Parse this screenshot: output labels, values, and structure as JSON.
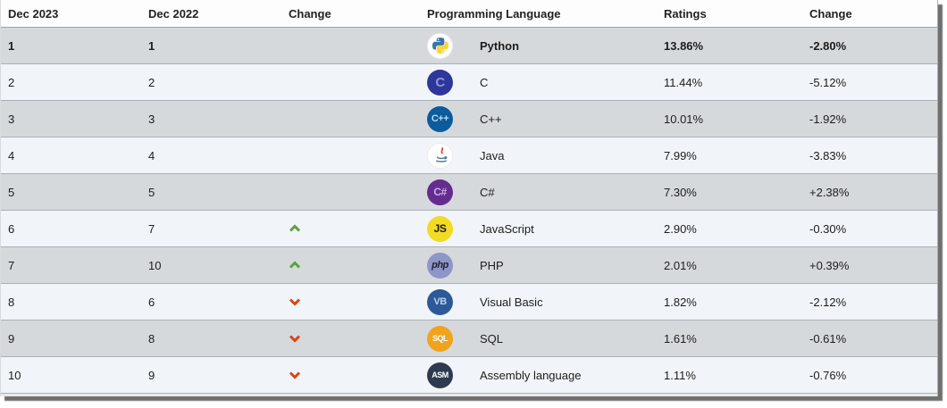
{
  "table": {
    "columns": [
      "Dec 2023",
      "Dec 2022",
      "Change",
      "Programming Language",
      "Ratings",
      "Change"
    ],
    "rows": [
      {
        "pos_now": "1",
        "pos_prev": "1",
        "trend": "none",
        "language": "Python",
        "ratings": "13.86%",
        "change": "-2.80%",
        "highlight": true,
        "icon": {
          "kind": "python",
          "bg": "#ffffff"
        }
      },
      {
        "pos_now": "2",
        "pos_prev": "2",
        "trend": "none",
        "language": "C",
        "ratings": "11.44%",
        "change": "-5.12%",
        "icon": {
          "kind": "text",
          "text": "C",
          "bg": "#2f3699",
          "fg": "#8f96d9",
          "size": 15
        }
      },
      {
        "pos_now": "3",
        "pos_prev": "3",
        "trend": "none",
        "language": "C++",
        "ratings": "10.01%",
        "change": "-1.92%",
        "icon": {
          "kind": "text",
          "text": "C++",
          "bg": "#0c5b9c",
          "fg": "#bcd9f2",
          "size": 11
        }
      },
      {
        "pos_now": "4",
        "pos_prev": "4",
        "trend": "none",
        "language": "Java",
        "ratings": "7.99%",
        "change": "-3.83%",
        "icon": {
          "kind": "java",
          "bg": "#ffffff"
        }
      },
      {
        "pos_now": "5",
        "pos_prev": "5",
        "trend": "none",
        "language": "C#",
        "ratings": "7.30%",
        "change": "+2.38%",
        "icon": {
          "kind": "text",
          "text": "C#",
          "bg": "#652c8f",
          "fg": "#cdaee4",
          "size": 12
        }
      },
      {
        "pos_now": "6",
        "pos_prev": "7",
        "trend": "up",
        "language": "JavaScript",
        "ratings": "2.90%",
        "change": "-0.30%",
        "icon": {
          "kind": "text",
          "text": "JS",
          "bg": "#f2db24",
          "fg": "#1a1a1a",
          "size": 12
        }
      },
      {
        "pos_now": "7",
        "pos_prev": "10",
        "trend": "up",
        "language": "PHP",
        "ratings": "2.01%",
        "change": "+0.39%",
        "icon": {
          "kind": "text",
          "text": "php",
          "bg": "#8d95c9",
          "fg": "#20242e",
          "size": 11,
          "italic": true
        }
      },
      {
        "pos_now": "8",
        "pos_prev": "6",
        "trend": "down",
        "language": "Visual Basic",
        "ratings": "1.82%",
        "change": "-2.12%",
        "icon": {
          "kind": "text",
          "text": "VB",
          "bg": "#2c5a96",
          "fg": "#b9d2ee",
          "size": 11
        }
      },
      {
        "pos_now": "9",
        "pos_prev": "8",
        "trend": "down",
        "language": "SQL",
        "ratings": "1.61%",
        "change": "-0.61%",
        "icon": {
          "kind": "text",
          "text": "SQL",
          "bg": "#f2a31d",
          "fg": "#ffffff",
          "size": 9
        }
      },
      {
        "pos_now": "10",
        "pos_prev": "9",
        "trend": "down",
        "language": "Assembly language",
        "ratings": "1.11%",
        "change": "-0.76%",
        "icon": {
          "kind": "text",
          "text": "ASM",
          "bg": "#2e3a50",
          "fg": "#ffffff",
          "size": 9
        }
      }
    ]
  },
  "colors": {
    "trend_up": "#5aa13e",
    "trend_down": "#dd4314",
    "row_highlight": "#d6d9dc",
    "row_light": "#f1f5f9"
  }
}
